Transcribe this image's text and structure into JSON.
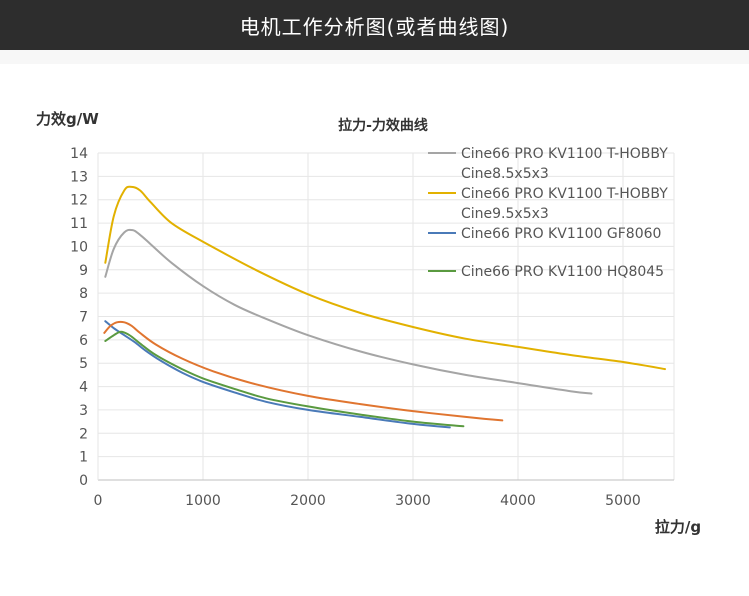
{
  "header": {
    "title": "电机工作分析图(或者曲线图)"
  },
  "chart_data": {
    "type": "line",
    "title": "拉力-力效曲线",
    "xlabel": "拉力/g",
    "ylabel": "力效g/W",
    "xlim": [
      0,
      5500
    ],
    "ylim": [
      0,
      14
    ],
    "xticks": [
      "0",
      "1000",
      "2000",
      "3000",
      "4000",
      "5000"
    ],
    "yticks": [
      "0",
      "1",
      "2",
      "3",
      "4",
      "5",
      "6",
      "7",
      "8",
      "9",
      "10",
      "11",
      "12",
      "13",
      "14"
    ],
    "grid": true,
    "legend_position": "top-right",
    "series": [
      {
        "name": "Cine66 PRO KV1100 T-HOBBY Cine8.5x5x3",
        "legend_lines": [
          "Cine66 PRO KV1100 T-HOBBY",
          "Cine8.5x5x3"
        ],
        "color": "#a5a5a5",
        "x": [
          70,
          150,
          250,
          330,
          400,
          500,
          700,
          1000,
          1300,
          1600,
          2000,
          2500,
          3000,
          3500,
          4000,
          4500,
          4700
        ],
        "y": [
          8.7,
          9.9,
          10.6,
          10.7,
          10.5,
          10.1,
          9.3,
          8.3,
          7.5,
          6.9,
          6.2,
          5.5,
          4.95,
          4.5,
          4.15,
          3.8,
          3.7
        ]
      },
      {
        "name": "Cine66 PRO KV1100 T-HOBBY Cine9.5x5x3",
        "legend_lines": [
          "Cine66 PRO KV1100 T-HOBBY",
          "Cine9.5x5x3"
        ],
        "color": "#e2b100",
        "x": [
          70,
          150,
          250,
          320,
          400,
          500,
          700,
          1000,
          1500,
          2000,
          2500,
          3000,
          3500,
          4000,
          4500,
          5000,
          5400
        ],
        "y": [
          9.3,
          11.3,
          12.4,
          12.55,
          12.4,
          11.9,
          11.0,
          10.2,
          9.0,
          7.95,
          7.15,
          6.55,
          6.05,
          5.7,
          5.35,
          5.05,
          4.75
        ]
      },
      {
        "name": "Cine66 PRO KV1100 GF8060",
        "legend_lines": [
          "Cine66 PRO KV1100 GF8060"
        ],
        "color": "#4a7ab8",
        "x": [
          70,
          150,
          250,
          350,
          450,
          600,
          800,
          1000,
          1300,
          1600,
          2000,
          2500,
          3000,
          3350
        ],
        "y": [
          6.8,
          6.5,
          6.2,
          5.9,
          5.55,
          5.1,
          4.6,
          4.2,
          3.75,
          3.35,
          3.0,
          2.7,
          2.4,
          2.25
        ]
      },
      {
        "name": "Cine66 PRO KV1100 HQ8045",
        "legend_lines": [
          "Cine66 PRO KV1100 HQ8045"
        ],
        "color": "#5a9a40",
        "x": [
          70,
          150,
          220,
          300,
          400,
          550,
          800,
          1000,
          1300,
          1600,
          2000,
          2500,
          3000,
          3480
        ],
        "y": [
          5.95,
          6.2,
          6.35,
          6.2,
          5.85,
          5.35,
          4.75,
          4.35,
          3.9,
          3.5,
          3.15,
          2.8,
          2.5,
          2.3
        ]
      },
      {
        "name": "",
        "legend_lines": [],
        "color": "#e07530",
        "x": [
          60,
          120,
          180,
          250,
          320,
          400,
          550,
          800,
          1100,
          1500,
          2000,
          2500,
          3000,
          3500,
          3850
        ],
        "y": [
          6.3,
          6.6,
          6.75,
          6.75,
          6.6,
          6.3,
          5.8,
          5.2,
          4.65,
          4.1,
          3.6,
          3.25,
          2.95,
          2.7,
          2.55
        ]
      }
    ]
  }
}
